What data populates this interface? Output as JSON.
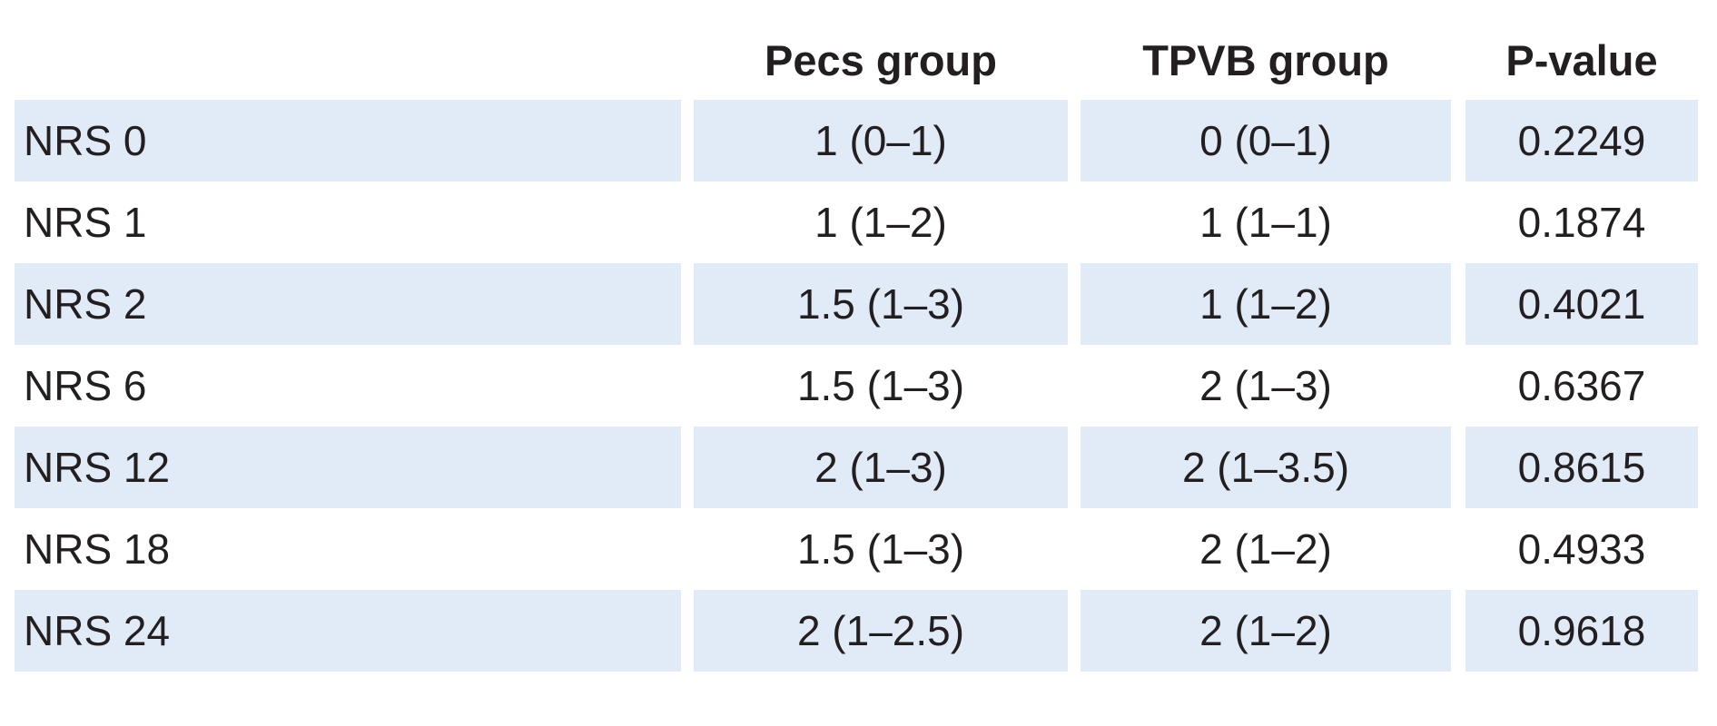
{
  "table": {
    "headers": [
      "",
      "Pecs group",
      "TPVB group",
      "P-value"
    ],
    "rows": [
      {
        "label": "NRS 0",
        "pecs": "1 (0–1)",
        "tpvb": "0 (0–1)",
        "p": "0.2249"
      },
      {
        "label": "NRS 1",
        "pecs": "1 (1–2)",
        "tpvb": "1 (1–1)",
        "p": "0.1874"
      },
      {
        "label": "NRS 2",
        "pecs": "1.5 (1–3)",
        "tpvb": "1 (1–2)",
        "p": "0.4021"
      },
      {
        "label": "NRS 6",
        "pecs": "1.5 (1–3)",
        "tpvb": "2 (1–3)",
        "p": "0.6367"
      },
      {
        "label": "NRS 12",
        "pecs": "2 (1–3)",
        "tpvb": "2 (1–3.5)",
        "p": "0.8615"
      },
      {
        "label": "NRS 18",
        "pecs": "1.5 (1–3)",
        "tpvb": "2 (1–2)",
        "p": "0.4933"
      },
      {
        "label": "NRS 24",
        "pecs": "2 (1–2.5)",
        "tpvb": "2 (1–2)",
        "p": "0.9618"
      }
    ]
  },
  "colors": {
    "row_shade": "#e1ebf7",
    "text": "#231f20"
  }
}
